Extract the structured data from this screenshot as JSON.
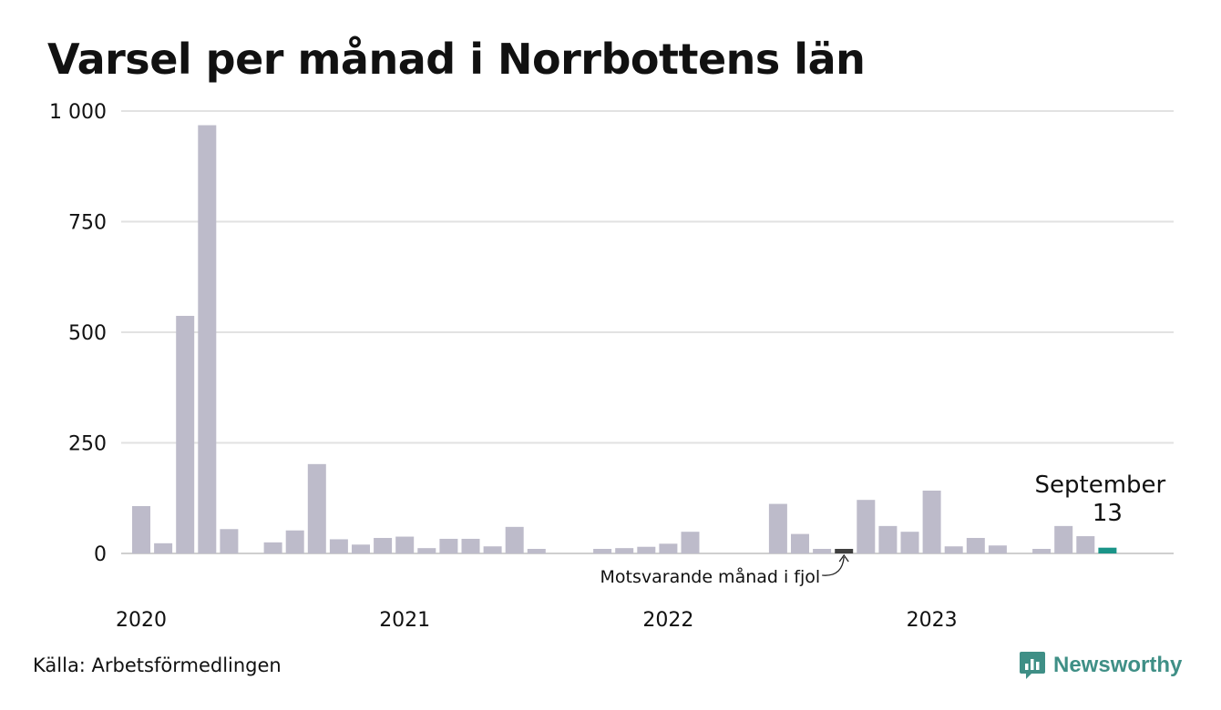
{
  "title": "Varsel per månad i Norrbottens län",
  "source": "Källa: Arbetsförmedlingen",
  "brand": {
    "name": "Newsworthy",
    "icon": "newsworthy-logo-icon",
    "color": "#3f8f86"
  },
  "chart_data": {
    "type": "bar",
    "title": "Varsel per månad i Norrbottens län",
    "xlabel": "",
    "ylabel": "",
    "ylim": [
      0,
      1000
    ],
    "yticks": [
      0,
      250,
      500,
      750,
      1000
    ],
    "ytick_labels": [
      "0",
      "250",
      "500",
      "750",
      "1 000"
    ],
    "xtick_labels": [
      "2020",
      "2021",
      "2022",
      "2023"
    ],
    "grid": true,
    "colors": {
      "default": "#bdbbca",
      "same_month_last_year": "#404040",
      "current": "#1a9488"
    },
    "categories": [
      "2020-01",
      "2020-02",
      "2020-03",
      "2020-04",
      "2020-05",
      "2020-06",
      "2020-07",
      "2020-08",
      "2020-09",
      "2020-10",
      "2020-11",
      "2020-12",
      "2021-01",
      "2021-02",
      "2021-03",
      "2021-04",
      "2021-05",
      "2021-06",
      "2021-07",
      "2021-08",
      "2021-09",
      "2021-10",
      "2021-11",
      "2021-12",
      "2022-01",
      "2022-02",
      "2022-03",
      "2022-04",
      "2022-05",
      "2022-06",
      "2022-07",
      "2022-08",
      "2022-09",
      "2022-10",
      "2022-11",
      "2022-12",
      "2023-01",
      "2023-02",
      "2023-03",
      "2023-04",
      "2023-05",
      "2023-06",
      "2023-07",
      "2023-08",
      "2023-09"
    ],
    "values": [
      107,
      23,
      537,
      968,
      55,
      0,
      25,
      52,
      202,
      32,
      20,
      35,
      38,
      12,
      33,
      33,
      16,
      60,
      5,
      0,
      0,
      7,
      12,
      15,
      22,
      49,
      0,
      0,
      0,
      112,
      44,
      5,
      7,
      121,
      62,
      49,
      142,
      16,
      35,
      18,
      0,
      5,
      62,
      39,
      13
    ],
    "highlights": {
      "same_month_last_year": "2022-09",
      "current": "2023-09"
    },
    "annotations": {
      "last_year": "Motsvarande månad i fjol",
      "current_month": "September",
      "current_value": "13"
    }
  }
}
